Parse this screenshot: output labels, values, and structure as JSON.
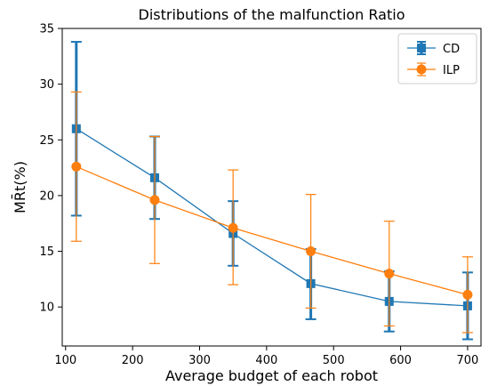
{
  "chart_data": {
    "type": "line",
    "title": "Distributions of the malfunction Ratio",
    "xlabel": "Average budget of each robot",
    "ylabel": "MR̄t(%)",
    "xlim": [
      95,
      720
    ],
    "ylim": [
      6.5,
      35
    ],
    "xticks": [
      100,
      200,
      300,
      400,
      500,
      600,
      700
    ],
    "yticks": [
      10,
      15,
      20,
      25,
      30,
      35
    ],
    "grid": false,
    "legend_position": "top-right",
    "series": [
      {
        "name": "CD",
        "color": "#1f77b4",
        "marker": "square",
        "x": [
          116,
          233,
          350,
          466,
          583,
          700
        ],
        "y": [
          26.0,
          21.6,
          16.6,
          12.1,
          10.5,
          10.1
        ],
        "err_low": [
          18.2,
          17.9,
          13.7,
          8.9,
          7.8,
          7.1
        ],
        "err_high": [
          33.8,
          25.3,
          19.5,
          15.2,
          13.2,
          13.1
        ]
      },
      {
        "name": "ILP",
        "color": "#ff7f0e",
        "marker": "circle",
        "x": [
          116,
          233,
          350,
          466,
          583,
          700
        ],
        "y": [
          22.6,
          19.6,
          17.1,
          15.0,
          13.0,
          11.1
        ],
        "err_low": [
          15.9,
          13.9,
          12.0,
          9.9,
          8.3,
          7.7
        ],
        "err_high": [
          29.3,
          25.3,
          22.3,
          20.1,
          17.7,
          14.5
        ]
      }
    ]
  }
}
